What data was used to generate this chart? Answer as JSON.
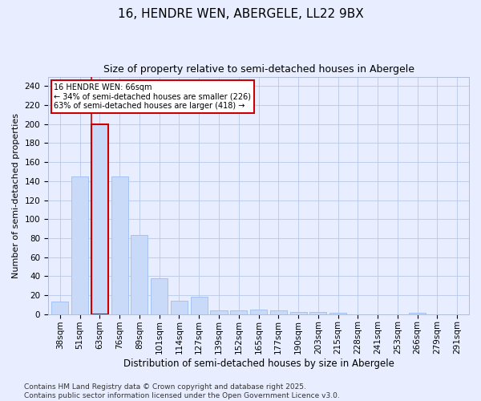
{
  "title": "16, HENDRE WEN, ABERGELE, LL22 9BX",
  "subtitle": "Size of property relative to semi-detached houses in Abergele",
  "xlabel": "Distribution of semi-detached houses by size in Abergele",
  "ylabel": "Number of semi-detached properties",
  "categories": [
    "38sqm",
    "51sqm",
    "63sqm",
    "76sqm",
    "89sqm",
    "101sqm",
    "114sqm",
    "127sqm",
    "139sqm",
    "152sqm",
    "165sqm",
    "177sqm",
    "190sqm",
    "203sqm",
    "215sqm",
    "228sqm",
    "241sqm",
    "253sqm",
    "266sqm",
    "279sqm",
    "291sqm"
  ],
  "values": [
    13,
    145,
    200,
    145,
    83,
    38,
    14,
    18,
    4,
    4,
    5,
    4,
    2,
    2,
    1,
    0,
    0,
    0,
    1,
    0,
    0
  ],
  "bar_color": "#c9daf8",
  "bar_edge_color": "#a4c2f4",
  "highlight_bar_index": 2,
  "highlight_bar_edge_color": "#cc0000",
  "vline_color": "#cc0000",
  "annotation_text": "16 HENDRE WEN: 66sqm\n← 34% of semi-detached houses are smaller (226)\n63% of semi-detached houses are larger (418) →",
  "annotation_box_color": "#ffffff",
  "annotation_box_edge_color": "#cc0000",
  "ylim": [
    0,
    250
  ],
  "yticks": [
    0,
    20,
    40,
    60,
    80,
    100,
    120,
    140,
    160,
    180,
    200,
    220,
    240
  ],
  "bg_color": "#e8eeff",
  "plot_bg_color": "#e8eeff",
  "footer": "Contains HM Land Registry data © Crown copyright and database right 2025.\nContains public sector information licensed under the Open Government Licence v3.0.",
  "title_fontsize": 11,
  "subtitle_fontsize": 9,
  "xlabel_fontsize": 8.5,
  "ylabel_fontsize": 8,
  "tick_fontsize": 7.5,
  "footer_fontsize": 6.5
}
